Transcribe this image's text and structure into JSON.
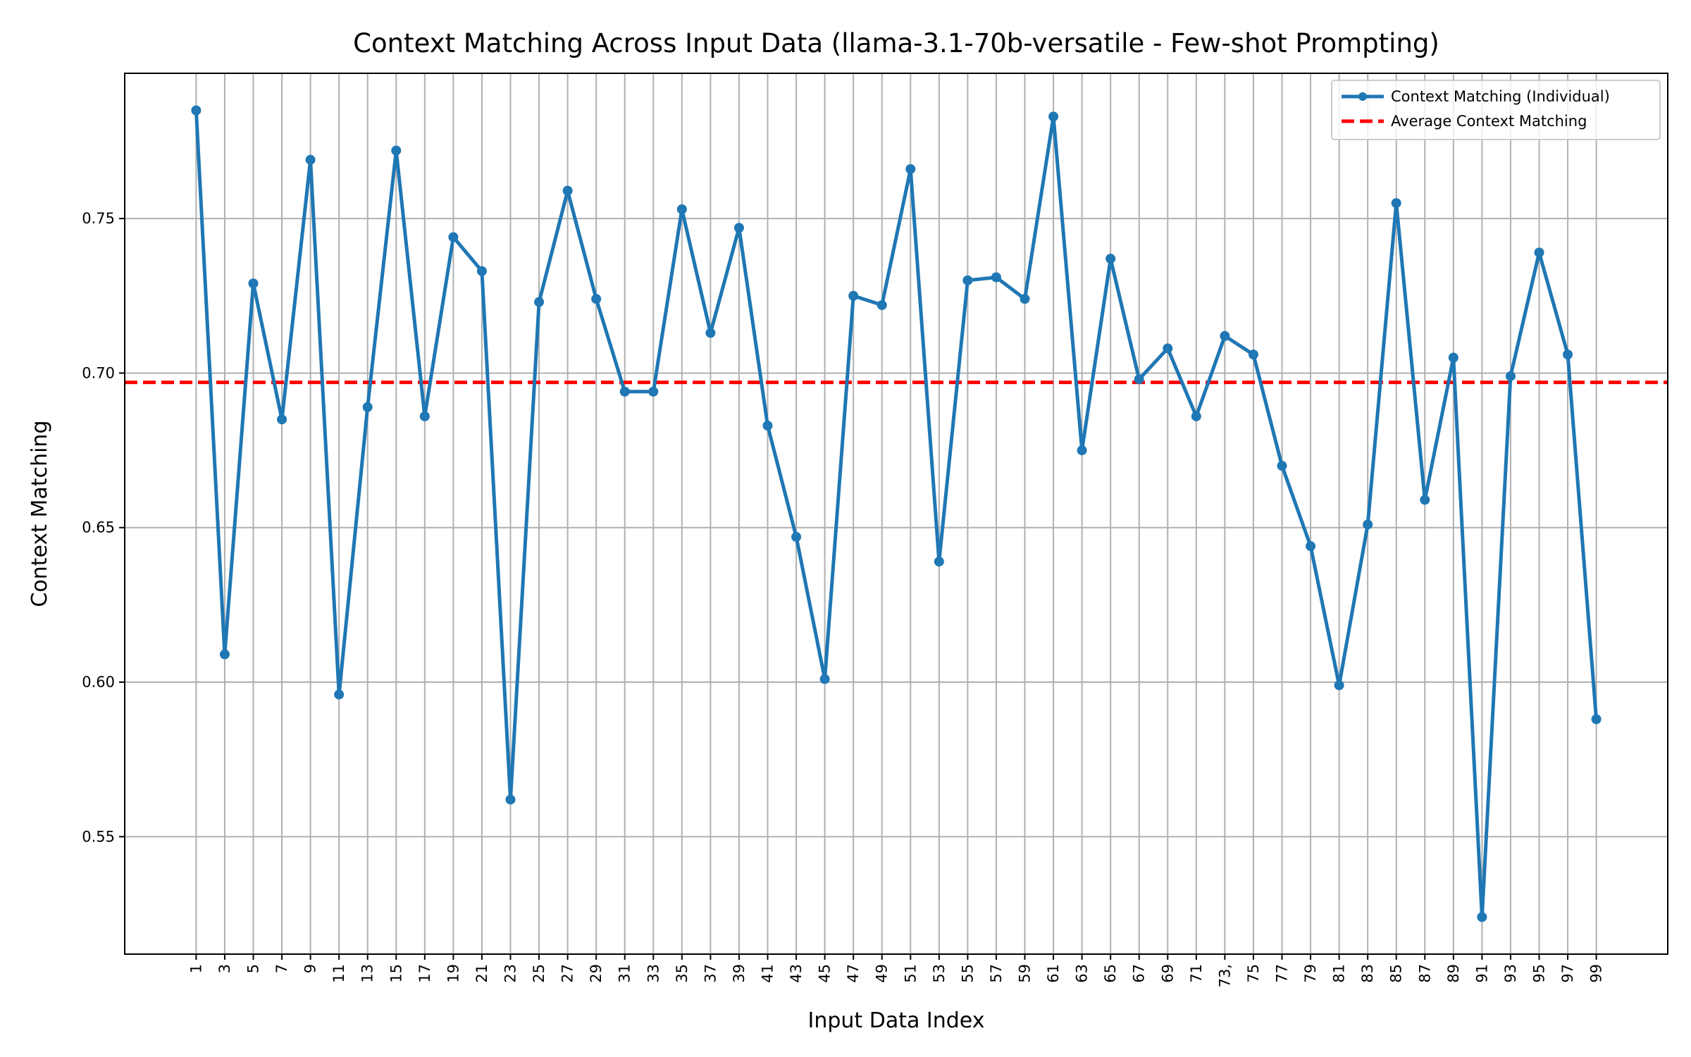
{
  "chart_data": {
    "type": "line",
    "title": "Context Matching Across Input Data (llama-3.1-70b-versatile - Few-shot Prompting)",
    "xlabel": "Input Data Index",
    "ylabel": "Context Matching",
    "x": [
      1,
      3,
      5,
      7,
      9,
      11,
      13,
      15,
      17,
      19,
      21,
      23,
      25,
      27,
      29,
      31,
      33,
      35,
      37,
      39,
      41,
      43,
      45,
      47,
      49,
      51,
      53,
      55,
      57,
      59,
      61,
      63,
      65,
      67,
      69,
      71,
      73,
      75,
      77,
      79,
      81,
      83,
      85,
      87,
      89,
      91,
      93,
      95,
      97,
      99
    ],
    "xticks": [
      "1",
      "3",
      "5",
      "7",
      "9",
      "11",
      "13",
      "15",
      "17",
      "19",
      "21",
      "23",
      "25",
      "27",
      "29",
      "31",
      "33",
      "35",
      "37",
      "39",
      "41",
      "43",
      "45",
      "47",
      "49",
      "51",
      "53",
      "55",
      "57",
      "59",
      "61",
      "63",
      "65",
      "67",
      "69",
      "71",
      "73,",
      "75",
      "77",
      "79",
      "81",
      "83",
      "85",
      "87",
      "89",
      "91",
      "93",
      "95",
      "97",
      "99"
    ],
    "yticks": [
      0.55,
      0.6,
      0.65,
      0.7,
      0.75
    ],
    "ytick_labels": [
      "0.55",
      "0.60",
      "0.65",
      "0.70",
      "0.75"
    ],
    "xlim": [
      -4,
      104
    ],
    "ylim": [
      0.512,
      0.797
    ],
    "grid": true,
    "legend_position": "top-right",
    "series": [
      {
        "name": "Context Matching (Individual)",
        "color": "#1f77b4",
        "style": "line-with-markers",
        "values": [
          0.785,
          0.609,
          0.729,
          0.685,
          0.769,
          0.596,
          0.689,
          0.772,
          0.686,
          0.744,
          0.733,
          0.562,
          0.723,
          0.759,
          0.724,
          0.694,
          0.694,
          0.753,
          0.713,
          0.747,
          0.683,
          0.647,
          0.601,
          0.725,
          0.722,
          0.766,
          0.639,
          0.73,
          0.731,
          0.724,
          0.783,
          0.675,
          0.737,
          0.698,
          0.708,
          0.686,
          0.712,
          0.706,
          0.67,
          0.644,
          0.599,
          0.651,
          0.755,
          0.659,
          0.705,
          0.524,
          0.699,
          0.739,
          0.706,
          0.588
        ]
      },
      {
        "name": "Average Context Matching",
        "color": "#ff0000",
        "style": "dashed-horizontal",
        "value": 0.697
      }
    ]
  }
}
